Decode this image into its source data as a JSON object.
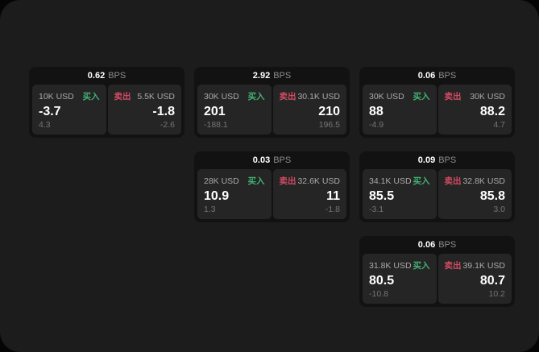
{
  "labels": {
    "bps_unit": "BPS",
    "buy": "买入",
    "sell": "卖出"
  },
  "colors": {
    "background": "#050505",
    "window_bg": "#1c1c1c",
    "card_bg": "#121212",
    "panel_bg": "#252525",
    "buy_green": "#43b173",
    "sell_red": "#d24b63"
  },
  "cards": [
    {
      "bps": "0.62",
      "buy": {
        "amount": "10K USD",
        "price": "-3.7",
        "delta": "4.3"
      },
      "sell": {
        "amount": "5.5K USD",
        "price": "-1.8",
        "delta": "-2.6"
      }
    },
    {
      "bps": "2.92",
      "buy": {
        "amount": "30K USD",
        "price": "201",
        "delta": "-188.1"
      },
      "sell": {
        "amount": "30.1K USD",
        "price": "210",
        "delta": "196.5"
      }
    },
    {
      "bps": "0.06",
      "buy": {
        "amount": "30K USD",
        "price": "88",
        "delta": "-4.9"
      },
      "sell": {
        "amount": "30K USD",
        "price": "88.2",
        "delta": "4.7"
      }
    },
    {
      "bps": "0.03",
      "buy": {
        "amount": "28K USD",
        "price": "10.9",
        "delta": "1.3"
      },
      "sell": {
        "amount": "32.6K USD",
        "price": "11",
        "delta": "-1.8"
      }
    },
    {
      "bps": "0.09",
      "buy": {
        "amount": "34.1K USD",
        "price": "85.5",
        "delta": "-3.1"
      },
      "sell": {
        "amount": "32.8K USD",
        "price": "85.8",
        "delta": "3.0"
      }
    },
    {
      "bps": "0.06",
      "buy": {
        "amount": "31.8K USD",
        "price": "80.5",
        "delta": "-10.8"
      },
      "sell": {
        "amount": "39.1K USD",
        "price": "80.7",
        "delta": "10.2"
      }
    }
  ]
}
